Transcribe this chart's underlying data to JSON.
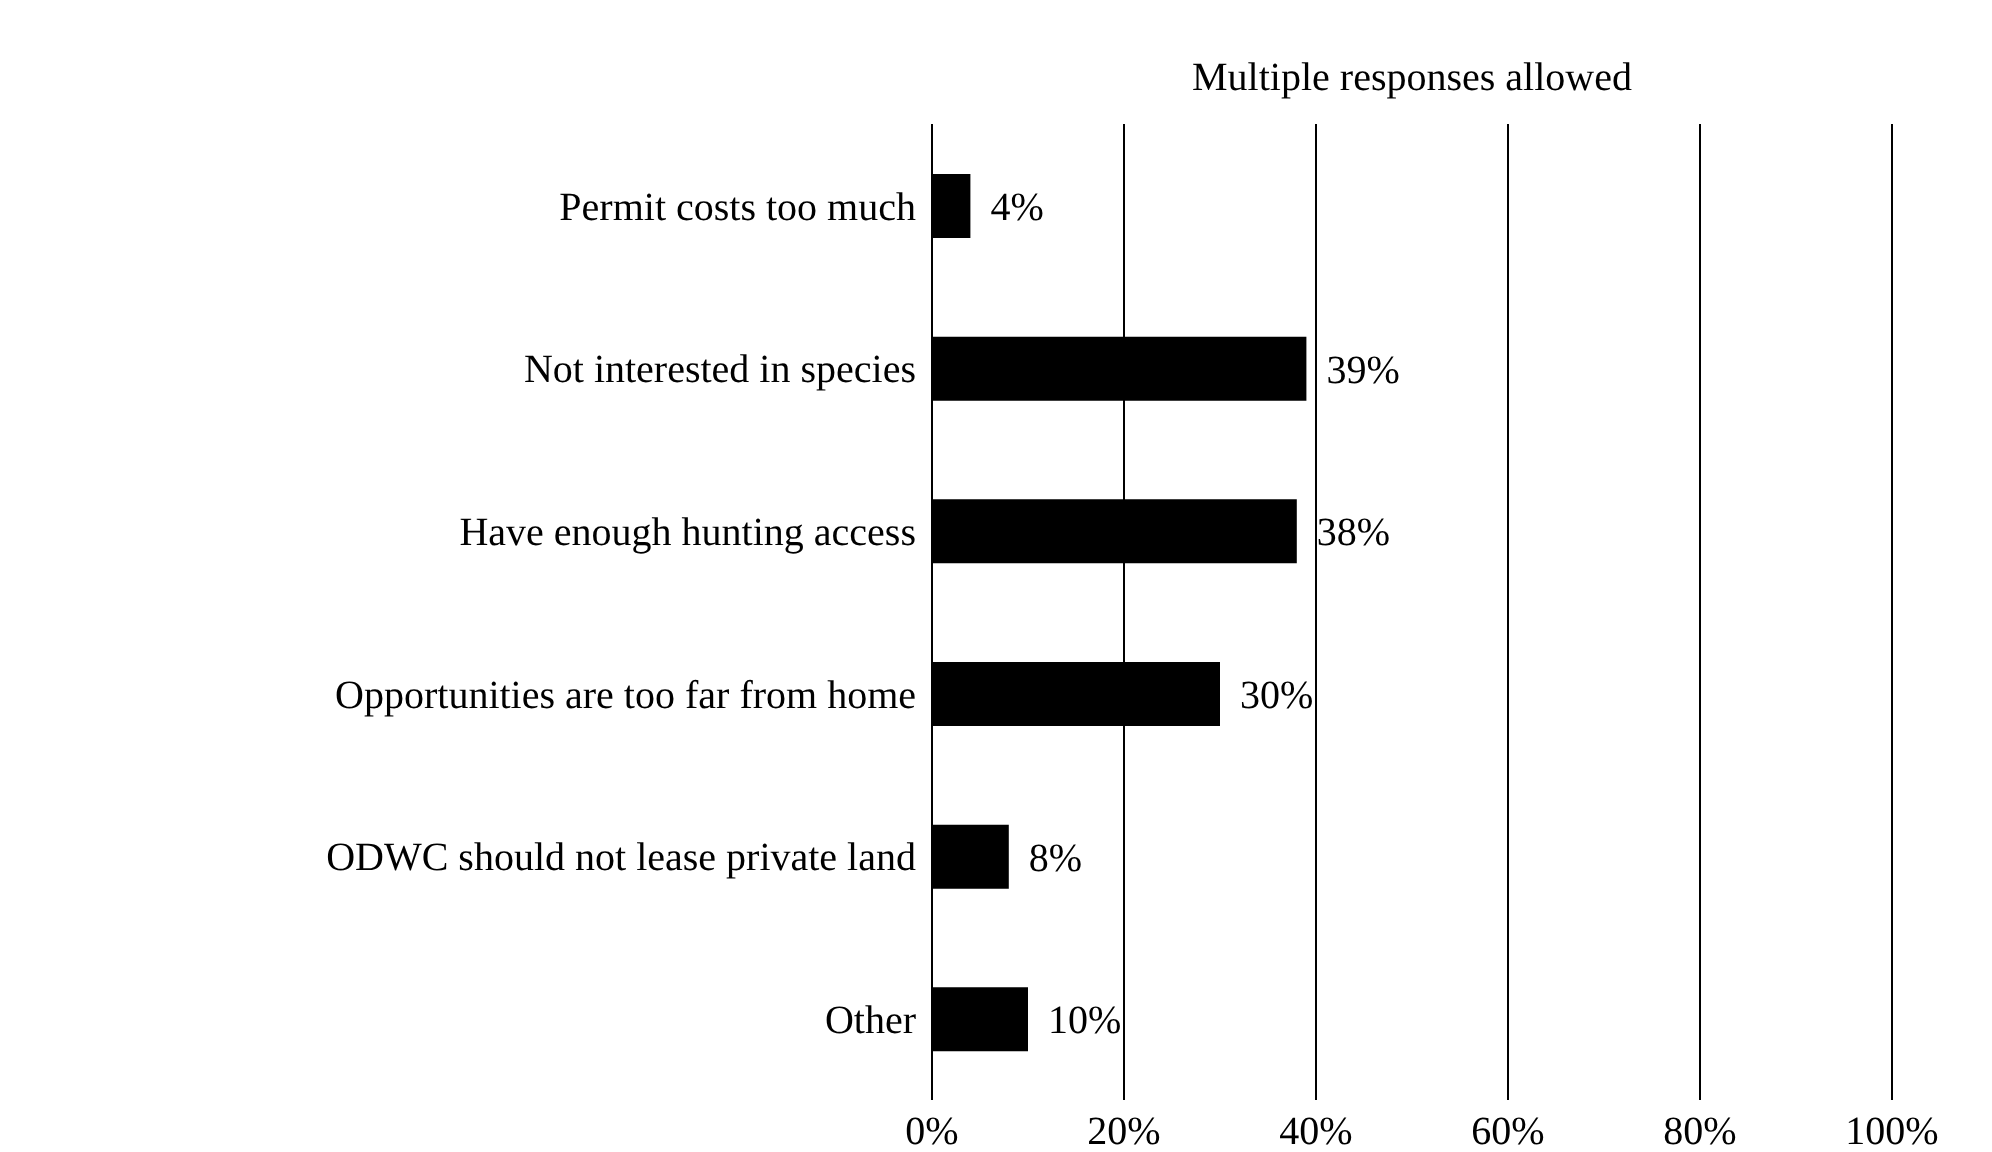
{
  "chart_data": {
    "type": "bar",
    "orientation": "horizontal",
    "title": "Multiple responses allowed",
    "categories": [
      "Permit costs too much",
      "Not interested in species",
      "Have enough hunting access",
      "Opportunities are too far from home",
      "ODWC should not lease private land",
      "Other"
    ],
    "values": [
      4,
      39,
      38,
      30,
      8,
      10
    ],
    "value_labels": [
      "4%",
      "39%",
      "38%",
      "30%",
      "8%",
      "10%"
    ],
    "color": "#000000",
    "xlim": [
      0,
      100
    ],
    "xticks": [
      {
        "value": 0,
        "label": "0%"
      },
      {
        "value": 20,
        "label": "20%"
      },
      {
        "value": 40,
        "label": "40%"
      },
      {
        "value": 60,
        "label": "60%"
      },
      {
        "value": 80,
        "label": "80%"
      },
      {
        "value": 100,
        "label": "100%"
      }
    ],
    "grid": "x",
    "legend": false
  }
}
